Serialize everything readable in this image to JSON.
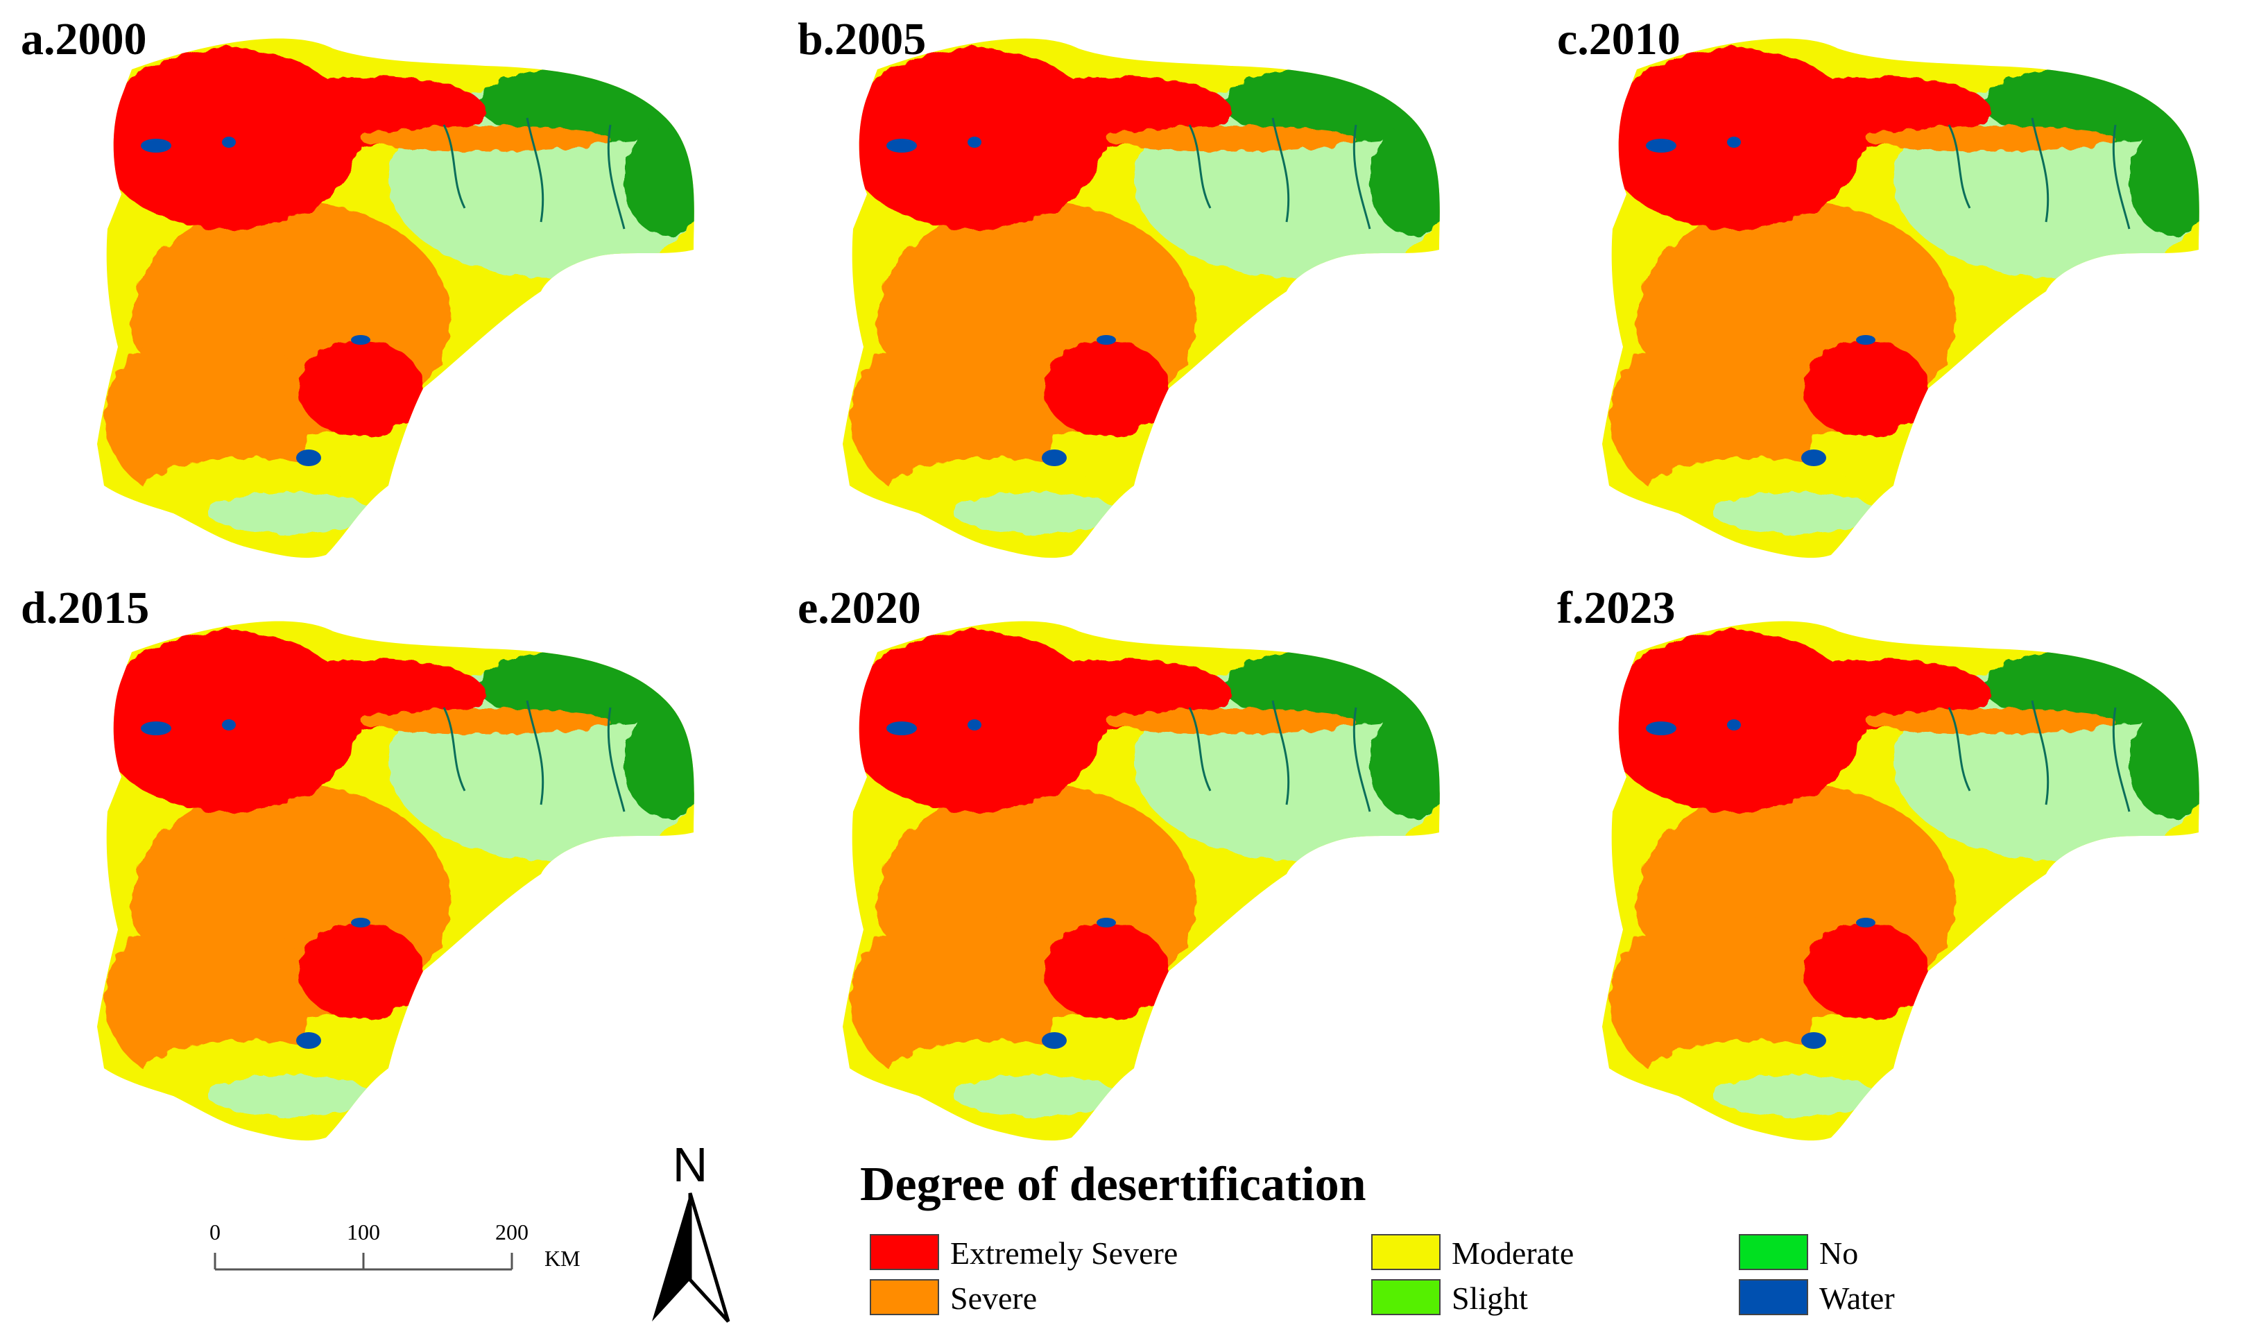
{
  "panels": [
    {
      "label": "a.2000"
    },
    {
      "label": "b.2005"
    },
    {
      "label": "c.2010"
    },
    {
      "label": "d.2015"
    },
    {
      "label": "e.2020"
    },
    {
      "label": "f.2023"
    }
  ],
  "legend": {
    "title": "Degree of desertification",
    "items": [
      {
        "label": "Extremely Severe",
        "color": "#ff0000"
      },
      {
        "label": "Severe",
        "color": "#ff8c00"
      },
      {
        "label": "Moderate",
        "color": "#f5f500"
      },
      {
        "label": "Slight",
        "color": "#55f000"
      },
      {
        "label": "No",
        "color": "#00e020"
      },
      {
        "label": "Water",
        "color": "#0050b0"
      }
    ]
  },
  "class_colors": {
    "light_green": "#b8f5a8",
    "dark_green": "#14a014"
  },
  "scale_bar": {
    "ticks": [
      "0",
      "100",
      "200"
    ],
    "unit": "KM"
  },
  "north_arrow": {
    "label": "N"
  }
}
